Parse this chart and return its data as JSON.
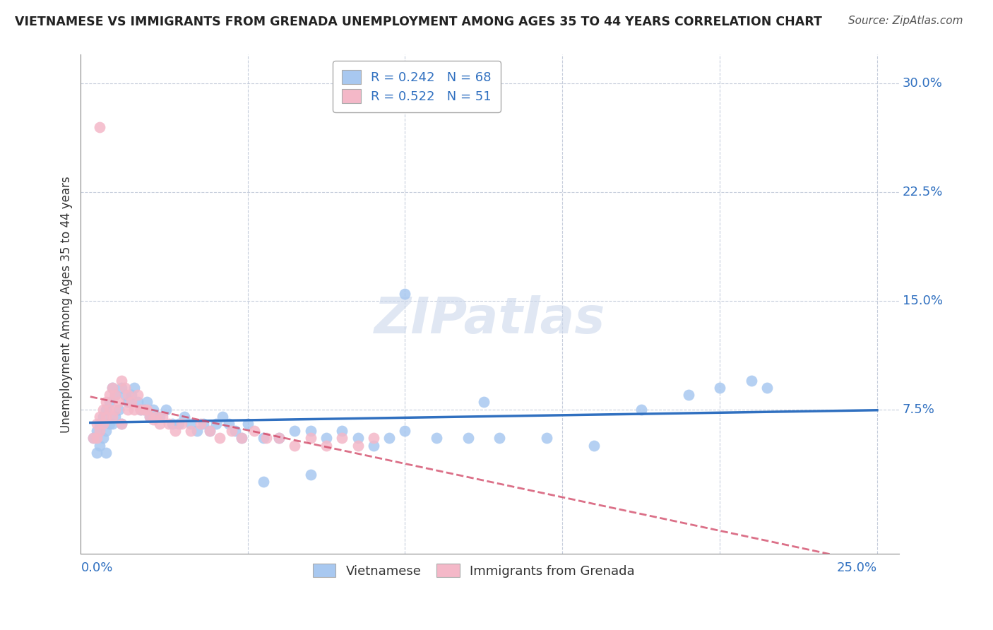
{
  "title": "VIETNAMESE VS IMMIGRANTS FROM GRENADA UNEMPLOYMENT AMONG AGES 35 TO 44 YEARS CORRELATION CHART",
  "source": "Source: ZipAtlas.com",
  "ylabel": "Unemployment Among Ages 35 to 44 years",
  "ylabel_right_ticks": [
    "30.0%",
    "22.5%",
    "15.0%",
    "7.5%"
  ],
  "ylabel_right_vals": [
    0.3,
    0.225,
    0.15,
    0.075
  ],
  "xmin": 0.0,
  "xmax": 0.25,
  "ymin": -0.025,
  "ymax": 0.32,
  "legend_entries": [
    {
      "label": "R = 0.242   N = 68",
      "color": "#a8c8f0"
    },
    {
      "label": "R = 0.522   N = 51",
      "color": "#f4b8c8"
    }
  ],
  "blue_color": "#a8c8f0",
  "pink_color": "#f4b8c8",
  "blue_line_color": "#3070c0",
  "pink_line_color": "#d04060",
  "watermark_text": "ZIPatlas",
  "bx": [
    0.001,
    0.002,
    0.002,
    0.003,
    0.003,
    0.004,
    0.004,
    0.005,
    0.005,
    0.005,
    0.006,
    0.006,
    0.007,
    0.007,
    0.008,
    0.008,
    0.009,
    0.01,
    0.01,
    0.011,
    0.012,
    0.013,
    0.014,
    0.015,
    0.016,
    0.017,
    0.018,
    0.019,
    0.02,
    0.022,
    0.024,
    0.026,
    0.028,
    0.03,
    0.032,
    0.034,
    0.036,
    0.038,
    0.04,
    0.042,
    0.044,
    0.046,
    0.048,
    0.05,
    0.055,
    0.06,
    0.065,
    0.07,
    0.075,
    0.08,
    0.085,
    0.09,
    0.095,
    0.1,
    0.11,
    0.12,
    0.13,
    0.145,
    0.16,
    0.175,
    0.19,
    0.2,
    0.21,
    0.215,
    0.1,
    0.125,
    0.055,
    0.07
  ],
  "by": [
    0.055,
    0.045,
    0.06,
    0.05,
    0.065,
    0.055,
    0.07,
    0.06,
    0.075,
    0.045,
    0.065,
    0.08,
    0.065,
    0.09,
    0.07,
    0.085,
    0.075,
    0.09,
    0.065,
    0.085,
    0.08,
    0.085,
    0.09,
    0.08,
    0.075,
    0.075,
    0.08,
    0.07,
    0.075,
    0.07,
    0.075,
    0.065,
    0.065,
    0.07,
    0.065,
    0.06,
    0.065,
    0.06,
    0.065,
    0.07,
    0.065,
    0.06,
    0.055,
    0.065,
    0.055,
    0.055,
    0.06,
    0.06,
    0.055,
    0.06,
    0.055,
    0.05,
    0.055,
    0.06,
    0.055,
    0.055,
    0.055,
    0.055,
    0.05,
    0.075,
    0.085,
    0.09,
    0.095,
    0.09,
    0.155,
    0.08,
    0.025,
    0.03
  ],
  "px": [
    0.001,
    0.002,
    0.002,
    0.003,
    0.003,
    0.004,
    0.004,
    0.005,
    0.005,
    0.006,
    0.006,
    0.007,
    0.007,
    0.008,
    0.008,
    0.009,
    0.01,
    0.01,
    0.011,
    0.012,
    0.012,
    0.013,
    0.014,
    0.015,
    0.016,
    0.017,
    0.018,
    0.019,
    0.02,
    0.021,
    0.022,
    0.023,
    0.025,
    0.027,
    0.029,
    0.032,
    0.035,
    0.038,
    0.041,
    0.045,
    0.048,
    0.052,
    0.056,
    0.06,
    0.065,
    0.07,
    0.075,
    0.08,
    0.085,
    0.09,
    0.003
  ],
  "py": [
    0.055,
    0.055,
    0.065,
    0.06,
    0.07,
    0.065,
    0.075,
    0.07,
    0.08,
    0.075,
    0.085,
    0.07,
    0.09,
    0.075,
    0.085,
    0.08,
    0.095,
    0.065,
    0.09,
    0.075,
    0.085,
    0.08,
    0.075,
    0.085,
    0.075,
    0.075,
    0.075,
    0.07,
    0.068,
    0.07,
    0.065,
    0.07,
    0.065,
    0.06,
    0.065,
    0.06,
    0.065,
    0.06,
    0.055,
    0.06,
    0.055,
    0.06,
    0.055,
    0.055,
    0.05,
    0.055,
    0.05,
    0.055,
    0.05,
    0.055,
    0.27
  ]
}
